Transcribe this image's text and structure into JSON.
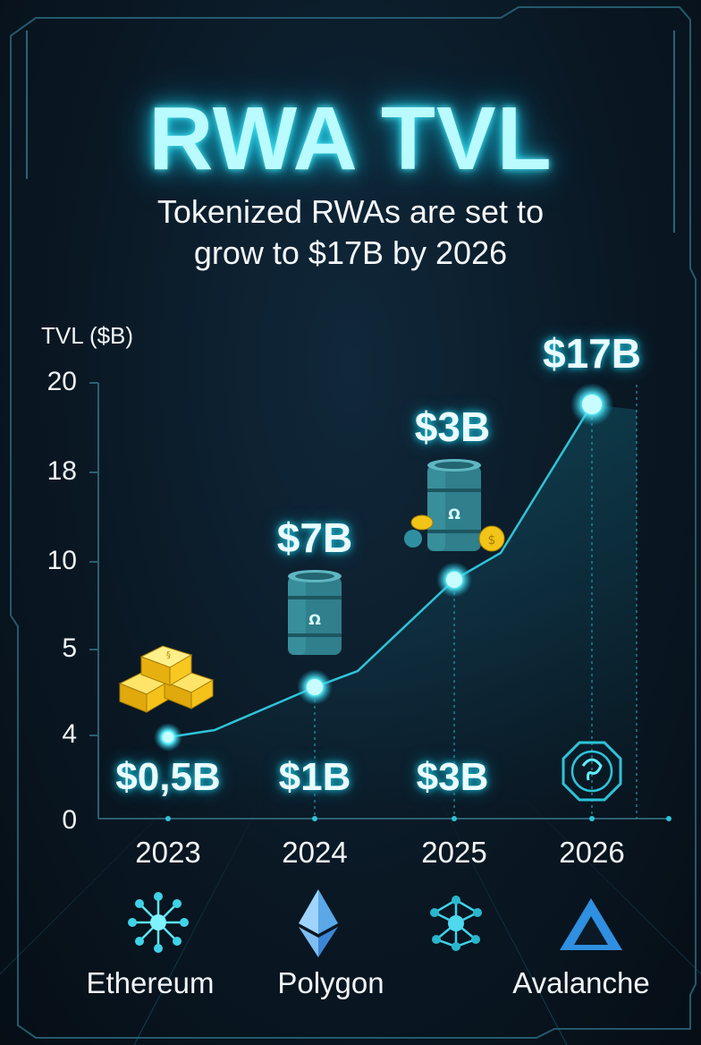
{
  "chart_data": {
    "type": "line",
    "title": "RWA TVL",
    "subtitle": "Tokenized RWAs are set to grow to $17B by 2026",
    "ylabel": "TVL ($B)",
    "xlabel": "",
    "y_ticks": [
      "20",
      "18",
      "10",
      "5",
      "4",
      "0"
    ],
    "categories": [
      "2023",
      "2024",
      "2025",
      "2026"
    ],
    "labels_top": [
      "",
      "$7B",
      "$3B",
      "$17B"
    ],
    "labels_bottom": [
      "$0,5B",
      "$1B",
      "$3B",
      ""
    ],
    "grid": false,
    "legend": "none"
  },
  "platforms": [
    {
      "name": "Ethereum",
      "icon": "network-hub-icon"
    },
    {
      "name": "Polygon",
      "icon": "ethereum-diamond-icon"
    },
    {
      "name": "",
      "icon": "node-graph-icon"
    },
    {
      "name": "Avalanche",
      "icon": "avalanche-triangle-icon"
    }
  ],
  "colors": {
    "accent": "#4ff0ff",
    "line": "#2fc3d8",
    "gold": "#f2c417",
    "barrel": "#2f7f8c"
  }
}
